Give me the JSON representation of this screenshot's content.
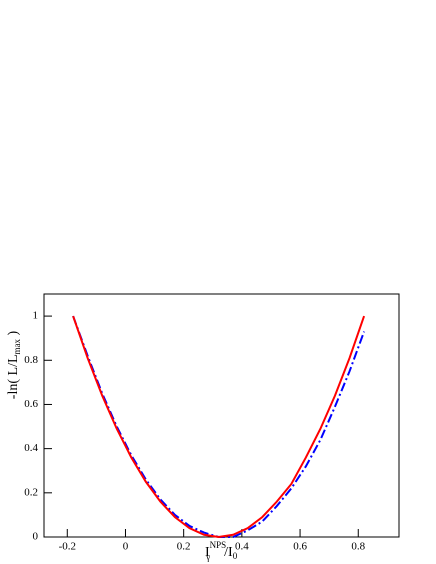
{
  "chart_data": {
    "type": "line",
    "xlabel": {
      "main": "I",
      "sub": "γ",
      "sup": "NPS",
      "rest": "/I",
      "rest_sub": "0"
    },
    "ylabel": {
      "main": "-ln( L/L",
      "sub": "max",
      "rest": " )"
    },
    "x": [
      -0.18,
      -0.13,
      -0.08,
      -0.03,
      0.02,
      0.07,
      0.12,
      0.17,
      0.22,
      0.27,
      0.32,
      0.37,
      0.42,
      0.47,
      0.52,
      0.57,
      0.62,
      0.67,
      0.72,
      0.77,
      0.82
    ],
    "series": [
      {
        "color": "#0000ff",
        "style": "dashdot",
        "values": [
          1.0,
          0.82,
          0.65,
          0.5,
          0.37,
          0.26,
          0.17,
          0.1,
          0.05,
          0.02,
          0.0,
          0.0,
          0.03,
          0.07,
          0.14,
          0.22,
          0.32,
          0.44,
          0.59,
          0.75,
          0.93
        ]
      },
      {
        "color": "#ff0000",
        "style": "solid",
        "values": [
          1.0,
          0.81,
          0.64,
          0.49,
          0.36,
          0.25,
          0.16,
          0.09,
          0.04,
          0.01,
          0.0,
          0.01,
          0.04,
          0.09,
          0.16,
          0.24,
          0.36,
          0.49,
          0.64,
          0.81,
          1.0
        ]
      }
    ],
    "xlim": [
      -0.28,
      0.94
    ],
    "ylim": [
      0,
      1.1
    ],
    "xticks": [
      -0.2,
      0,
      0.2,
      0.4,
      0.6,
      0.8
    ],
    "yticks": [
      0,
      0.2,
      0.4,
      0.6,
      0.8,
      1
    ],
    "grid": false
  }
}
